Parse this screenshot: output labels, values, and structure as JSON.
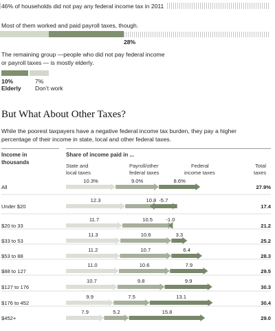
{
  "intro": {
    "stat1_text": "46% of households did not pay any federal income tax in 2011",
    "stat2_text": "Most of them worked and paid payroll taxes, though.",
    "stat2_value": "28%",
    "stat3_text_line1": "The remaining group —people who did not pay federal income",
    "stat3_text_line2": "or payroll taxes — is mostly elderly.",
    "elderly_value": "10%",
    "elderly_label": "Elderly",
    "dontwork_value": "7%",
    "dontwork_label": "Don’t work",
    "fractions": {
      "no_federal_income_tax": 0.46,
      "paid_payroll": 0.28,
      "elderly": 0.1,
      "dont_work": 0.07
    },
    "colors": {
      "dark": "#7f8f6f",
      "light": "#d3d8cb"
    }
  },
  "section": {
    "title": "But What About Other Taxes?",
    "desc_line1": "While the poorest taxpayers have a negative federal income tax burden, they pay a higher",
    "desc_line2": "percentage of their income in state, local and other federal taxes."
  },
  "table": {
    "income_header_line1": "Income in",
    "income_header_line2": "thousands",
    "share_header": "Share of income paid in ...",
    "state_header_line1": "State and",
    "state_header_line2": "local taxes",
    "payroll_header_line1": "Payroll/other",
    "payroll_header_line2": "federal taxes",
    "federal_header_line1": "Federal",
    "federal_header_line2": "income taxes",
    "total_header_line1": "Total",
    "total_header_line2": "taxes"
  },
  "chart_data": {
    "type": "bar",
    "title": "But What About Other Taxes?",
    "stacked": true,
    "units": "percent of income",
    "categories": [
      "All",
      "Under $20",
      "$20 to 33",
      "$33 to 53",
      "$53 to 88",
      "$88 to 127",
      "$127 to 176",
      "$176 to 452",
      "$452+"
    ],
    "series": [
      {
        "name": "State and local taxes",
        "color": "#dcdfd7",
        "values": [
          10.3,
          12.3,
          11.7,
          11.3,
          11.2,
          11.0,
          10.7,
          9.9,
          7.9
        ]
      },
      {
        "name": "Payroll/other federal taxes",
        "color": "#a7af9c",
        "values": [
          9.0,
          10.8,
          10.5,
          10.6,
          10.7,
          10.6,
          9.8,
          7.5,
          5.2
        ]
      },
      {
        "name": "Federal income taxes",
        "color": "#77876a",
        "values": [
          8.6,
          -5.7,
          -1.0,
          3.3,
          6.4,
          7.9,
          9.9,
          13.1,
          15.8
        ]
      }
    ],
    "labels": {
      "state": [
        "10.3%",
        "12.3",
        "11.7",
        "11.3",
        "11.2",
        "11.0",
        "10.7",
        "9.9",
        "7.9"
      ],
      "payroll": [
        "9.0%",
        "10.8",
        "10.5",
        "10.6",
        "10.7",
        "10.6",
        "9.8",
        "7.5",
        "5.2"
      ],
      "federal": [
        "8.6%",
        "-5.7",
        "-1.0",
        "3.3",
        "6.4",
        "7.9",
        "9.9",
        "13.1",
        "15.8"
      ]
    },
    "totals": [
      "27.9%",
      "17.4",
      "21.2",
      "25.2",
      "28.3",
      "29.5",
      "30.3",
      "30.4",
      "29.0"
    ]
  }
}
